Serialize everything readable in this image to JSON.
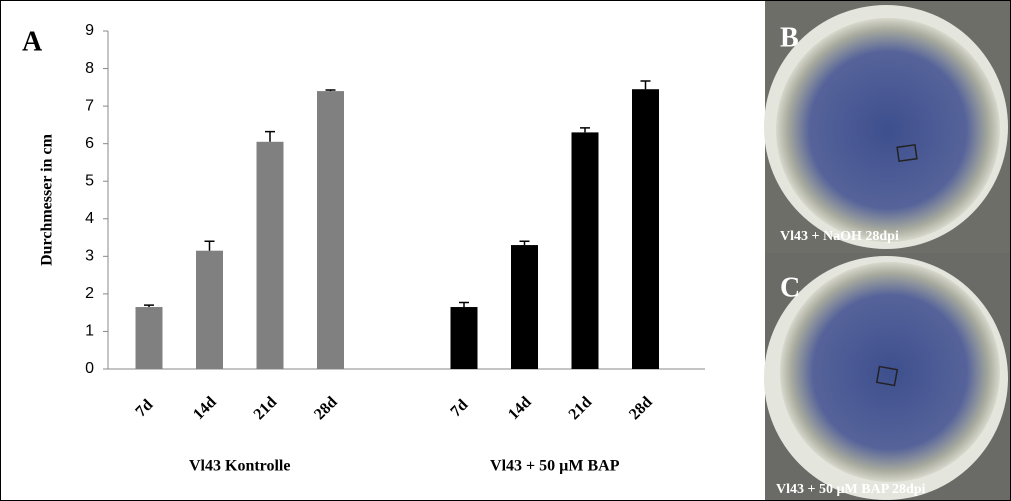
{
  "chart_data": {
    "type": "bar",
    "panel": "A",
    "y_label": "Durchmesser in cm",
    "ylim": [
      0,
      9
    ],
    "yticks": [
      0,
      1,
      2,
      3,
      4,
      5,
      6,
      7,
      8,
      9
    ],
    "groups": [
      {
        "label": "Vl43 Kontrolle",
        "color": "#808080",
        "categories": [
          "7d",
          "14d",
          "21d",
          "28d"
        ],
        "values": [
          1.65,
          3.15,
          6.05,
          7.4
        ],
        "errors": [
          0.05,
          0.25,
          0.27,
          0.03
        ]
      },
      {
        "label": "Vl43 + 50 µM BAP",
        "color": "#000000",
        "categories": [
          "7d",
          "14d",
          "21d",
          "28d"
        ],
        "values": [
          1.65,
          3.3,
          6.3,
          7.45
        ],
        "errors": [
          0.12,
          0.1,
          0.12,
          0.22
        ]
      }
    ]
  },
  "photos": [
    {
      "panel": "B",
      "caption": "Vl43 + NaOH 28dpi"
    },
    {
      "panel": "C",
      "caption": "Vl43 + 50 µM BAP 28dpi"
    }
  ]
}
